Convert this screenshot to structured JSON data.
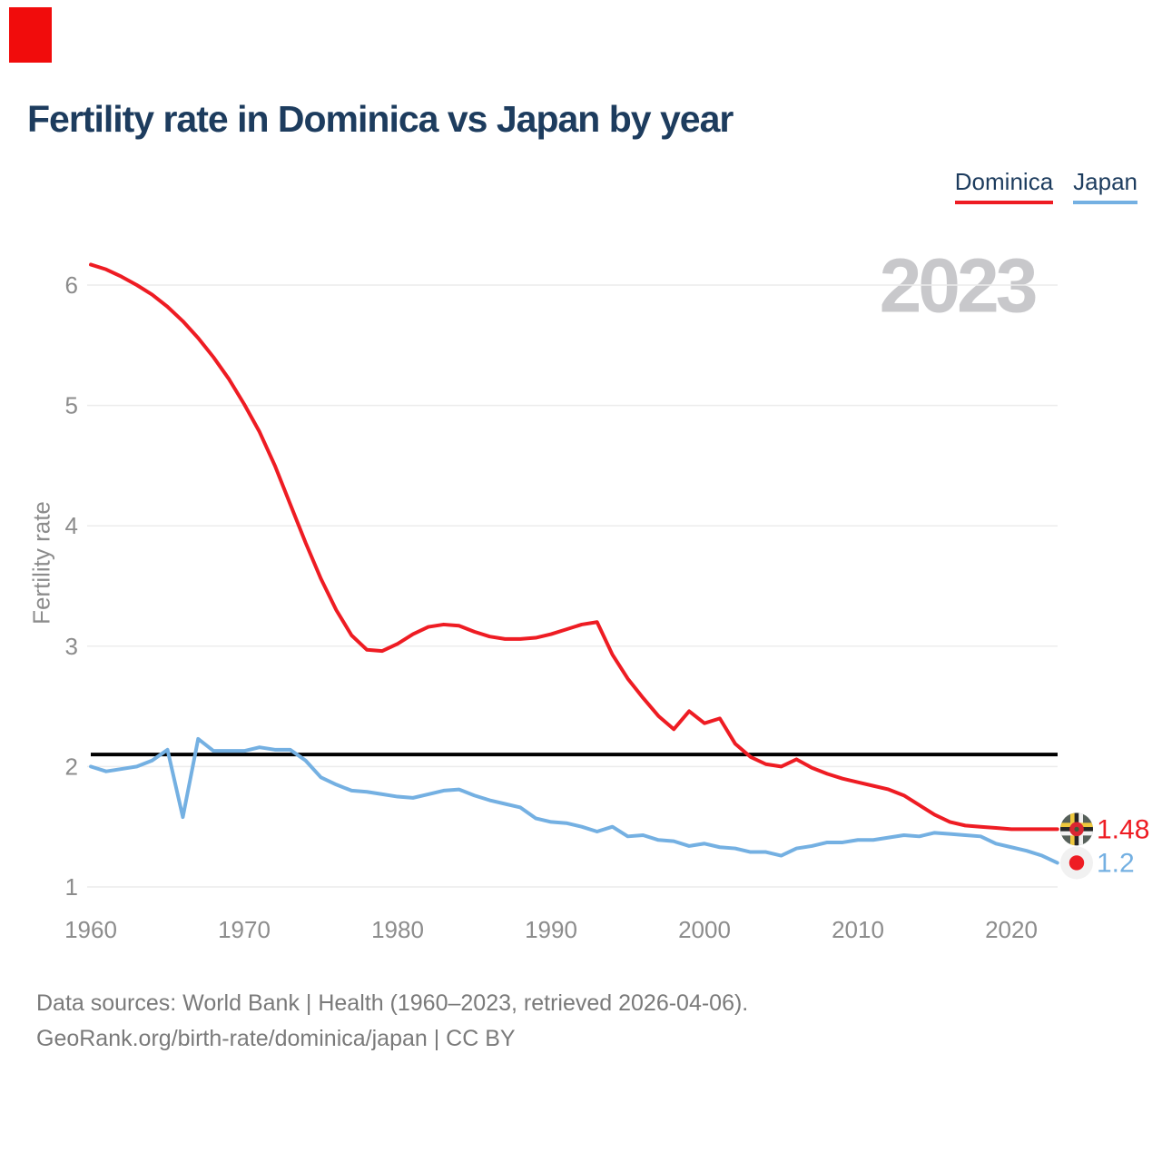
{
  "header": {
    "title": "Fertility rate in Dominica vs Japan by year"
  },
  "legend": {
    "items": [
      {
        "label": "Dominica",
        "color": "#ee1c23"
      },
      {
        "label": "Japan",
        "color": "#74b0e2"
      }
    ]
  },
  "overlay_marker": {
    "color": "#f10c0c"
  },
  "chart_data": {
    "type": "line",
    "title": "Fertility rate in Dominica vs Japan by year",
    "ylabel": "Fertility rate",
    "xlabel": "",
    "watermark": "2023",
    "grid": true,
    "legend_position": "top-right",
    "xlim": [
      1960,
      2023
    ],
    "ylim": [
      0.75,
      6.35
    ],
    "x_ticks": [
      1960,
      1970,
      1980,
      1990,
      2000,
      2010,
      2020
    ],
    "y_ticks": [
      1,
      2,
      3,
      4,
      5,
      6
    ],
    "reference_line": {
      "value": 2.1,
      "color": "#000000"
    },
    "axis_color": "#8c8c8c",
    "grid_color": "#ececec",
    "x": [
      1960,
      1961,
      1962,
      1963,
      1964,
      1965,
      1966,
      1967,
      1968,
      1969,
      1970,
      1971,
      1972,
      1973,
      1974,
      1975,
      1976,
      1977,
      1978,
      1979,
      1980,
      1981,
      1982,
      1983,
      1984,
      1985,
      1986,
      1987,
      1988,
      1989,
      1990,
      1991,
      1992,
      1993,
      1994,
      1995,
      1996,
      1997,
      1998,
      1999,
      2000,
      2001,
      2002,
      2003,
      2004,
      2005,
      2006,
      2007,
      2008,
      2009,
      2010,
      2011,
      2012,
      2013,
      2014,
      2015,
      2016,
      2017,
      2018,
      2019,
      2020,
      2021,
      2022,
      2023
    ],
    "series": [
      {
        "name": "Dominica",
        "color": "#ee1c23",
        "end_label": "1.48",
        "values": [
          6.17,
          6.13,
          6.07,
          6.0,
          5.92,
          5.82,
          5.7,
          5.56,
          5.4,
          5.22,
          5.01,
          4.78,
          4.5,
          4.18,
          3.86,
          3.56,
          3.3,
          3.09,
          2.97,
          2.96,
          3.02,
          3.1,
          3.16,
          3.18,
          3.17,
          3.12,
          3.08,
          3.06,
          3.06,
          3.07,
          3.1,
          3.14,
          3.18,
          3.2,
          2.93,
          2.73,
          2.57,
          2.42,
          2.31,
          2.46,
          2.36,
          2.4,
          2.19,
          2.08,
          2.02,
          2.0,
          2.06,
          1.99,
          1.94,
          1.9,
          1.87,
          1.84,
          1.81,
          1.76,
          1.68,
          1.6,
          1.54,
          1.51,
          1.5,
          1.49,
          1.48,
          1.48,
          1.48,
          1.48
        ]
      },
      {
        "name": "Japan",
        "color": "#74b0e2",
        "end_label": "1.2",
        "values": [
          2.0,
          1.96,
          1.98,
          2.0,
          2.05,
          2.14,
          1.58,
          2.23,
          2.13,
          2.13,
          2.13,
          2.16,
          2.14,
          2.14,
          2.05,
          1.91,
          1.85,
          1.8,
          1.79,
          1.77,
          1.75,
          1.74,
          1.77,
          1.8,
          1.81,
          1.76,
          1.72,
          1.69,
          1.66,
          1.57,
          1.54,
          1.53,
          1.5,
          1.46,
          1.5,
          1.42,
          1.43,
          1.39,
          1.38,
          1.34,
          1.36,
          1.33,
          1.32,
          1.29,
          1.29,
          1.26,
          1.32,
          1.34,
          1.37,
          1.37,
          1.39,
          1.39,
          1.41,
          1.43,
          1.42,
          1.45,
          1.44,
          1.43,
          1.42,
          1.36,
          1.33,
          1.3,
          1.26,
          1.2
        ]
      }
    ]
  },
  "footer": {
    "line1": "Data sources: World Bank | Health (1960–2023, retrieved 2026-04-06).",
    "line2": "GeoRank.org/birth-rate/dominica/japan | CC BY"
  }
}
